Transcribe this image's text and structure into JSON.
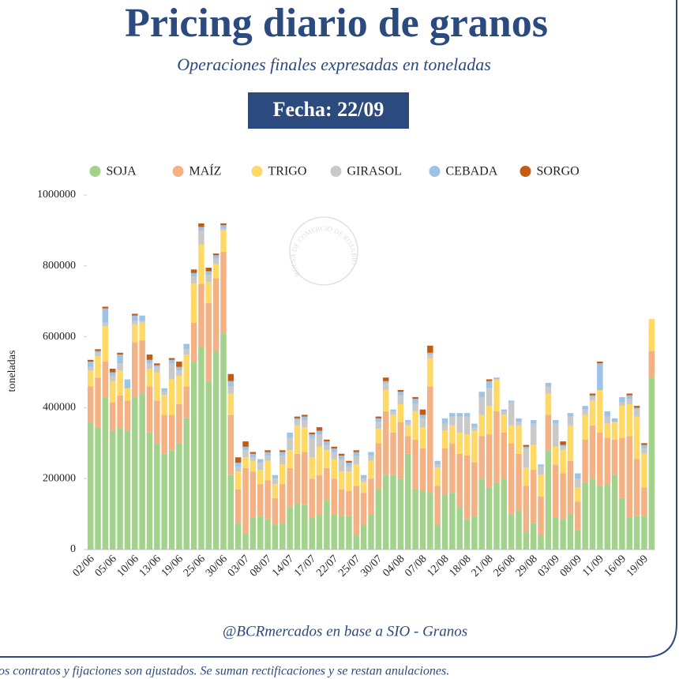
{
  "chart_data": {
    "type": "stacked-bar",
    "title": "Pricing diario de granos",
    "subtitle": "Operaciones finales expresadas en toneladas",
    "date_label": "Fecha: 22/09",
    "ylabel": "toneladas",
    "source": "@BCRmercados en base a SIO - Granos",
    "note": "os contratos y fijaciones son ajustados. Se suman rectificaciones y  se restan anulaciones.",
    "watermark": "BOLSA DE COMERCIO DE ROSARIO",
    "ylim": [
      0,
      1000000
    ],
    "yticks": [
      0,
      200000,
      400000,
      600000,
      800000,
      1000000
    ],
    "categories": [
      "02/06",
      null,
      null,
      "05/06",
      null,
      null,
      "10/06",
      null,
      null,
      "13/06",
      null,
      null,
      "19/06",
      null,
      null,
      "25/06",
      null,
      null,
      "30/06",
      null,
      null,
      "03/07",
      null,
      null,
      "08/07",
      null,
      null,
      "14/07",
      null,
      null,
      "17/07",
      null,
      null,
      "22/07",
      null,
      null,
      "25/07",
      null,
      null,
      "30/07",
      null,
      null,
      "04/08",
      null,
      null,
      "07/08",
      null,
      null,
      "12/08",
      null,
      null,
      "18/08",
      null,
      null,
      "21/08",
      null,
      null,
      "26/08",
      null,
      null,
      "29/08",
      null,
      null,
      "03/09",
      null,
      null,
      "08/09",
      null,
      null,
      "11/09",
      null,
      null,
      "16/09",
      null,
      null,
      "19/09",
      null
    ],
    "series": [
      {
        "name": "SOJA",
        "color": "#a3d28c",
        "values": [
          360000,
          345000,
          430000,
          335000,
          345000,
          335000,
          430000,
          440000,
          330000,
          300000,
          270000,
          280000,
          300000,
          370000,
          530000,
          570000,
          475000,
          560000,
          610000,
          210000,
          75000,
          45000,
          90000,
          95000,
          85000,
          70000,
          75000,
          120000,
          130000,
          125000,
          90000,
          100000,
          140000,
          100000,
          95000,
          95000,
          40000,
          70000,
          100000,
          170000,
          210000,
          210000,
          200000,
          270000,
          170000,
          165000,
          160000,
          70000,
          155000,
          160000,
          120000,
          85000,
          95000,
          200000,
          175000,
          190000,
          200000,
          100000,
          110000,
          50000,
          75000,
          40000,
          280000,
          90000,
          85000,
          100000,
          55000,
          190000,
          200000,
          180000,
          185000,
          210000,
          145000,
          90000,
          95000,
          95000,
          485000
        ]
      },
      {
        "name": "MAÍZ",
        "color": "#f4b183",
        "values": [
          100000,
          140000,
          100000,
          80000,
          90000,
          85000,
          155000,
          150000,
          130000,
          120000,
          110000,
          100000,
          110000,
          90000,
          110000,
          180000,
          220000,
          205000,
          230000,
          170000,
          95000,
          185000,
          130000,
          90000,
          110000,
          75000,
          110000,
          110000,
          140000,
          150000,
          110000,
          110000,
          90000,
          100000,
          75000,
          70000,
          140000,
          90000,
          100000,
          130000,
          180000,
          120000,
          160000,
          50000,
          140000,
          120000,
          300000,
          110000,
          130000,
          140000,
          150000,
          180000,
          150000,
          120000,
          150000,
          200000,
          130000,
          200000,
          160000,
          130000,
          150000,
          110000,
          100000,
          150000,
          130000,
          150000,
          80000,
          120000,
          150000,
          150000,
          130000,
          100000,
          170000,
          230000,
          160000,
          80000,
          75000
        ]
      },
      {
        "name": "TRIGO",
        "color": "#ffd966",
        "values": [
          45000,
          60000,
          100000,
          60000,
          70000,
          35000,
          50000,
          50000,
          50000,
          80000,
          55000,
          100000,
          80000,
          90000,
          110000,
          110000,
          60000,
          40000,
          60000,
          60000,
          50000,
          30000,
          30000,
          40000,
          55000,
          40000,
          55000,
          50000,
          80000,
          70000,
          60000,
          80000,
          50000,
          55000,
          50000,
          55000,
          60000,
          30000,
          50000,
          40000,
          60000,
          50000,
          50000,
          30000,
          80000,
          60000,
          80000,
          50000,
          50000,
          50000,
          60000,
          60000,
          90000,
          60000,
          80000,
          90000,
          50000,
          50000,
          80000,
          50000,
          70000,
          60000,
          60000,
          50000,
          65000,
          100000,
          40000,
          70000,
          70000,
          120000,
          40000,
          50000,
          90000,
          90000,
          120000,
          95000,
          90000
        ]
      },
      {
        "name": "GIRASOL",
        "color": "#c9c9c9",
        "values": [
          10000,
          10000,
          10000,
          15000,
          20000,
          0,
          10000,
          5000,
          15000,
          15000,
          10000,
          45000,
          15000,
          15000,
          20000,
          40000,
          20000,
          15000,
          5000,
          20000,
          15000,
          20000,
          10000,
          20000,
          15000,
          15000,
          25000,
          35000,
          15000,
          20000,
          55000,
          35000,
          15000,
          20000,
          35000,
          15000,
          25000,
          10000,
          15000,
          20000,
          20000,
          10000,
          25000,
          10000,
          20000,
          25000,
          10000,
          10000,
          20000,
          25000,
          45000,
          50000,
          10000,
          50000,
          50000,
          0,
          10000,
          65000,
          10000,
          55000,
          60000,
          25000,
          20000,
          65000,
          10000,
          25000,
          25000,
          15000,
          10000,
          0,
          20000,
          0,
          10000,
          15000,
          20000,
          15000,
          0
        ]
      },
      {
        "name": "CEBADA",
        "color": "#9dc3e6",
        "values": [
          15000,
          5000,
          40000,
          10000,
          25000,
          25000,
          15000,
          15000,
          10000,
          5000,
          10000,
          10000,
          10000,
          15000,
          10000,
          10000,
          10000,
          10000,
          10000,
          15000,
          10000,
          10000,
          10000,
          10000,
          10000,
          10000,
          10000,
          15000,
          5000,
          10000,
          10000,
          10000,
          10000,
          10000,
          10000,
          10000,
          10000,
          10000,
          10000,
          10000,
          5000,
          5000,
          10000,
          5000,
          15000,
          10000,
          5000,
          10000,
          15000,
          10000,
          10000,
          10000,
          10000,
          15000,
          20000,
          5000,
          5000,
          5000,
          10000,
          5000,
          10000,
          5000,
          10000,
          10000,
          5000,
          10000,
          15000,
          10000,
          5000,
          75000,
          15000,
          10000,
          15000,
          10000,
          5000,
          10000,
          0
        ]
      },
      {
        "name": "SORGO",
        "color": "#c55a11",
        "values": [
          5000,
          5000,
          5000,
          10000,
          5000,
          0,
          5000,
          0,
          15000,
          5000,
          0,
          5000,
          15000,
          0,
          10000,
          10000,
          10000,
          5000,
          5000,
          20000,
          15000,
          15000,
          5000,
          0,
          5000,
          0,
          5000,
          0,
          5000,
          5000,
          5000,
          10000,
          5000,
          5000,
          5000,
          5000,
          5000,
          0,
          0,
          5000,
          10000,
          0,
          5000,
          0,
          5000,
          15000,
          20000,
          0,
          0,
          0,
          0,
          0,
          0,
          0,
          5000,
          0,
          0,
          0,
          0,
          5000,
          0,
          0,
          0,
          0,
          10000,
          0,
          0,
          0,
          5000,
          5000,
          0,
          0,
          0,
          5000,
          5000,
          5000,
          0
        ]
      }
    ]
  }
}
